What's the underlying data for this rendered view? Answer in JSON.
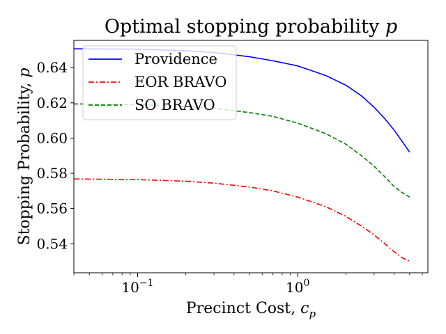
{
  "chart_data": {
    "type": "line",
    "title": "Optimal stopping probability p",
    "title_text": "Optimal stopping probability ",
    "title_var": "p",
    "xlabel": "Precinct Cost, c_p",
    "xlabel_text": "Precinct Cost, ",
    "xlabel_var": "c",
    "xlabel_sub": "p",
    "ylabel": "Stopping Probability, p",
    "ylabel_text": "Stopping Probability, ",
    "ylabel_var": "p",
    "x_scale": "log",
    "xlim": [
      0.04,
      6.5
    ],
    "ylim": [
      0.5235,
      0.6555
    ],
    "x_ticks": [
      {
        "value": 0.1,
        "base": "10",
        "exp": "−1"
      },
      {
        "value": 1,
        "base": "10",
        "exp": "0"
      }
    ],
    "y_ticks": [
      {
        "value": 0.54,
        "label": "0.54"
      },
      {
        "value": 0.56,
        "label": "0.56"
      },
      {
        "value": 0.58,
        "label": "0.58"
      },
      {
        "value": 0.6,
        "label": "0.60"
      },
      {
        "value": 0.62,
        "label": "0.62"
      },
      {
        "value": 0.64,
        "label": "0.64"
      }
    ],
    "grid": false,
    "legend_position": "top-left",
    "series": [
      {
        "name": "Providence",
        "color": "#0000ff",
        "dash": "solid",
        "points": [
          [
            0.04,
            0.6507
          ],
          [
            0.1,
            0.6505
          ],
          [
            0.2,
            0.6496
          ],
          [
            0.3,
            0.6486
          ],
          [
            0.5,
            0.6462
          ],
          [
            0.7,
            0.6439
          ],
          [
            1.0,
            0.641
          ],
          [
            1.5,
            0.6355
          ],
          [
            2.0,
            0.63
          ],
          [
            2.5,
            0.624
          ],
          [
            3.0,
            0.6175
          ],
          [
            3.5,
            0.611
          ],
          [
            4.0,
            0.6045
          ],
          [
            4.5,
            0.598
          ],
          [
            5.0,
            0.592
          ]
        ]
      },
      {
        "name": "EOR BRAVO",
        "color": "#ff0000",
        "dash": "dashdot",
        "points": [
          [
            0.04,
            0.5768
          ],
          [
            0.1,
            0.5764
          ],
          [
            0.2,
            0.5755
          ],
          [
            0.3,
            0.5744
          ],
          [
            0.5,
            0.5722
          ],
          [
            0.7,
            0.57
          ],
          [
            1.0,
            0.5665
          ],
          [
            1.5,
            0.561
          ],
          [
            2.0,
            0.5555
          ],
          [
            2.5,
            0.55
          ],
          [
            3.0,
            0.545
          ],
          [
            3.5,
            0.54
          ],
          [
            4.0,
            0.5355
          ],
          [
            4.5,
            0.532
          ],
          [
            5.0,
            0.53
          ]
        ]
      },
      {
        "name": "SO BRAVO",
        "color": "#008000",
        "dash": "dashed",
        "points": [
          [
            0.04,
            0.6194
          ],
          [
            0.1,
            0.6191
          ],
          [
            0.2,
            0.618
          ],
          [
            0.3,
            0.6168
          ],
          [
            0.5,
            0.6145
          ],
          [
            0.7,
            0.6123
          ],
          [
            1.0,
            0.6085
          ],
          [
            1.5,
            0.6025
          ],
          [
            2.0,
            0.5965
          ],
          [
            2.5,
            0.59
          ],
          [
            3.0,
            0.584
          ],
          [
            3.5,
            0.578
          ],
          [
            4.0,
            0.5725
          ],
          [
            4.5,
            0.569
          ],
          [
            5.0,
            0.5665
          ]
        ]
      }
    ]
  }
}
